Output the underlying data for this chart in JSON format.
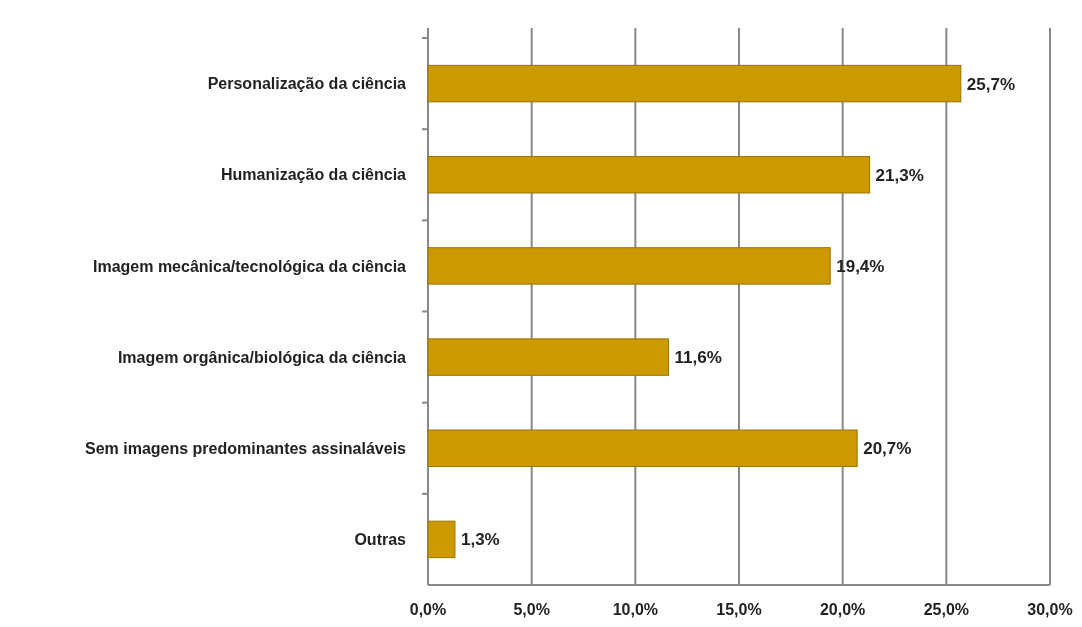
{
  "chart_data": {
    "type": "bar",
    "orientation": "horizontal",
    "categories": [
      "Personalização da ciência",
      "Humanização da ciência",
      "Imagem mecânica/tecnológica da ciência",
      "Imagem orgânica/biológica da ciência",
      "Sem imagens predominantes assinaláveis",
      "Outras"
    ],
    "values": [
      25.7,
      21.3,
      19.4,
      11.6,
      20.7,
      1.3
    ],
    "value_labels": [
      "25,7%",
      "21,3%",
      "19,4%",
      "11,6%",
      "20,7%",
      "1,3%"
    ],
    "color": "#cc9900",
    "xlim": [
      0,
      30
    ],
    "xticks": [
      {
        "value": 0,
        "label": "0,0%"
      },
      {
        "value": 5,
        "label": "5,0%"
      },
      {
        "value": 10,
        "label": "10,0%"
      },
      {
        "value": 15,
        "label": "15,0%"
      },
      {
        "value": 20,
        "label": "20,0%"
      },
      {
        "value": 25,
        "label": "25,0%"
      },
      {
        "value": 30,
        "label": "30,0%"
      }
    ],
    "grid": "x"
  }
}
